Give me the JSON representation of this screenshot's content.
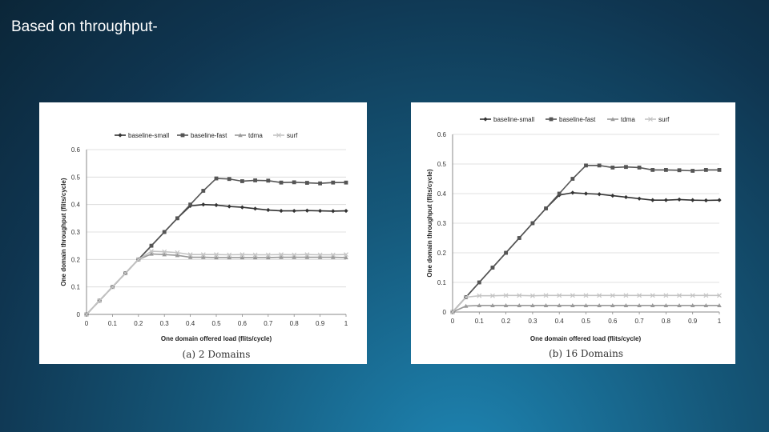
{
  "slide": {
    "title": "Based on throughput-"
  },
  "chart_data": [
    {
      "type": "line",
      "caption": "(a) 2 Domains",
      "xlabel": "One domain offered load (flits/cycle)",
      "ylabel": "One domain throughput (flits/cycle)",
      "xlim": [
        0,
        1
      ],
      "ylim": [
        0,
        0.6
      ],
      "xticks": [
        "0",
        "0.1",
        "0.2",
        "0.3",
        "0.4",
        "0.5",
        "0.6",
        "0.7",
        "0.8",
        "0.9",
        "1"
      ],
      "yticks": [
        "0",
        "0.1",
        "0.2",
        "0.3",
        "0.4",
        "0.5",
        "0.6"
      ],
      "legend_position": "top",
      "grid": "horizontal",
      "x": [
        0,
        0.05,
        0.1,
        0.15,
        0.2,
        0.25,
        0.3,
        0.35,
        0.4,
        0.45,
        0.5,
        0.55,
        0.6,
        0.65,
        0.7,
        0.75,
        0.8,
        0.85,
        0.9,
        0.95,
        1
      ],
      "series": [
        {
          "name": "baseline-small",
          "marker": "diamond",
          "color": "#333333",
          "values": [
            0,
            0.05,
            0.1,
            0.15,
            0.2,
            0.25,
            0.3,
            0.35,
            0.395,
            0.4,
            0.398,
            0.393,
            0.39,
            0.385,
            0.38,
            0.377,
            0.377,
            0.378,
            0.377,
            0.376,
            0.377
          ]
        },
        {
          "name": "baseline-fast",
          "marker": "square",
          "color": "#555555",
          "values": [
            0,
            0.05,
            0.1,
            0.15,
            0.2,
            0.25,
            0.3,
            0.35,
            0.4,
            0.45,
            0.495,
            0.493,
            0.485,
            0.488,
            0.487,
            0.48,
            0.481,
            0.479,
            0.477,
            0.48,
            0.48
          ]
        },
        {
          "name": "tdma",
          "marker": "triangle",
          "color": "#9a9a9a",
          "values": [
            0,
            0.05,
            0.1,
            0.15,
            0.2,
            0.22,
            0.218,
            0.215,
            0.208,
            0.208,
            0.207,
            0.207,
            0.207,
            0.207,
            0.207,
            0.208,
            0.208,
            0.208,
            0.208,
            0.208,
            0.207
          ]
        },
        {
          "name": "surf",
          "marker": "x",
          "color": "#c4c4c4",
          "values": [
            0,
            0.05,
            0.1,
            0.15,
            0.2,
            0.23,
            0.228,
            0.225,
            0.218,
            0.218,
            0.218,
            0.217,
            0.218,
            0.217,
            0.217,
            0.218,
            0.217,
            0.218,
            0.217,
            0.217,
            0.218
          ]
        }
      ]
    },
    {
      "type": "line",
      "caption": "(b) 16 Domains",
      "xlabel": "One domain offered load (flits/cycle)",
      "ylabel": "One domain throughput (flits/cycle)",
      "xlim": [
        0,
        1
      ],
      "ylim": [
        0,
        0.6
      ],
      "xticks": [
        "0",
        "0.1",
        "0.2",
        "0.3",
        "0.4",
        "0.5",
        "0.6",
        "0.7",
        "0.8",
        "0.9",
        "1"
      ],
      "yticks": [
        "0",
        "0.1",
        "0.2",
        "0.3",
        "0.4",
        "0.5",
        "0.6"
      ],
      "legend_position": "top",
      "grid": "horizontal",
      "x": [
        0,
        0.05,
        0.1,
        0.15,
        0.2,
        0.25,
        0.3,
        0.35,
        0.4,
        0.45,
        0.5,
        0.55,
        0.6,
        0.65,
        0.7,
        0.75,
        0.8,
        0.85,
        0.9,
        0.95,
        1
      ],
      "series": [
        {
          "name": "baseline-small",
          "marker": "diamond",
          "color": "#333333",
          "values": [
            0,
            0.05,
            0.1,
            0.15,
            0.2,
            0.25,
            0.3,
            0.35,
            0.395,
            0.403,
            0.4,
            0.398,
            0.393,
            0.388,
            0.383,
            0.378,
            0.378,
            0.38,
            0.378,
            0.377,
            0.378
          ]
        },
        {
          "name": "baseline-fast",
          "marker": "square",
          "color": "#555555",
          "values": [
            0,
            0.05,
            0.1,
            0.15,
            0.2,
            0.25,
            0.3,
            0.35,
            0.4,
            0.45,
            0.495,
            0.495,
            0.488,
            0.49,
            0.488,
            0.48,
            0.48,
            0.479,
            0.477,
            0.48,
            0.48
          ]
        },
        {
          "name": "tdma",
          "marker": "triangle",
          "color": "#9a9a9a",
          "values": [
            0,
            0.02,
            0.022,
            0.022,
            0.022,
            0.022,
            0.022,
            0.022,
            0.022,
            0.022,
            0.022,
            0.022,
            0.022,
            0.022,
            0.022,
            0.022,
            0.022,
            0.022,
            0.022,
            0.022,
            0.022
          ]
        },
        {
          "name": "surf",
          "marker": "x",
          "color": "#c4c4c4",
          "values": [
            0,
            0.05,
            0.055,
            0.055,
            0.056,
            0.056,
            0.055,
            0.056,
            0.056,
            0.056,
            0.056,
            0.056,
            0.056,
            0.056,
            0.056,
            0.056,
            0.056,
            0.056,
            0.056,
            0.056,
            0.056
          ]
        }
      ]
    }
  ]
}
